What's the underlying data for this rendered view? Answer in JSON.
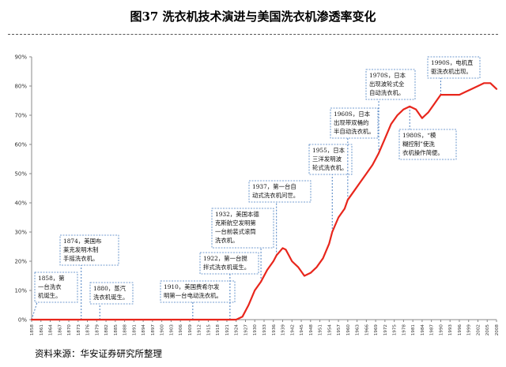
{
  "figure": {
    "title": "图37 洗衣机技术演进与美国洗衣机渗透率变化",
    "source": "资料来源：华安证券研究所整理"
  },
  "chart_data": {
    "type": "line",
    "title": "图37 洗衣机技术演进与美国洗衣机渗透率变化",
    "xlabel": "",
    "ylabel": "",
    "xlim": [
      1858,
      2008
    ],
    "ylim": [
      0,
      0.9
    ],
    "yticks": [
      "0%",
      "10%",
      "20%",
      "30%",
      "40%",
      "50%",
      "60%",
      "70%",
      "80%",
      "90%"
    ],
    "xticks": [
      1858,
      1861,
      1864,
      1867,
      1870,
      1873,
      1876,
      1879,
      1882,
      1885,
      1888,
      1891,
      1894,
      1897,
      1900,
      1903,
      1906,
      1909,
      1912,
      1915,
      1918,
      1921,
      1924,
      1927,
      1930,
      1933,
      1936,
      1939,
      1942,
      1945,
      1948,
      1951,
      1954,
      1957,
      1960,
      1963,
      1966,
      1969,
      1972,
      1975,
      1978,
      1981,
      1984,
      1987,
      1990,
      1993,
      1996,
      1999,
      2002,
      2005,
      2008
    ],
    "grid": false,
    "line_color": "#e8261c",
    "series": [
      {
        "x": [
          1858,
          1900,
          1922,
          1924,
          1926,
          1928,
          1930,
          1932,
          1934,
          1936,
          1937,
          1939,
          1940,
          1941,
          1942,
          1944,
          1946,
          1948,
          1950,
          1952,
          1954,
          1955,
          1957,
          1959,
          1960,
          1962,
          1964,
          1966,
          1968,
          1970,
          1972,
          1974,
          1976,
          1978,
          1980,
          1982,
          1984,
          1985,
          1986,
          1988,
          1990,
          1992,
          1994,
          1996,
          1998,
          2000,
          2002,
          2004,
          2006,
          2008
        ],
        "y": [
          0,
          0,
          0,
          0,
          0.01,
          0.05,
          0.1,
          0.13,
          0.17,
          0.2,
          0.22,
          0.245,
          0.24,
          0.22,
          0.2,
          0.18,
          0.15,
          0.16,
          0.18,
          0.21,
          0.26,
          0.3,
          0.35,
          0.38,
          0.41,
          0.44,
          0.47,
          0.5,
          0.53,
          0.57,
          0.62,
          0.67,
          0.7,
          0.72,
          0.73,
          0.72,
          0.69,
          0.7,
          0.71,
          0.74,
          0.77,
          0.77,
          0.77,
          0.77,
          0.78,
          0.79,
          0.8,
          0.81,
          0.81,
          0.79
        ]
      }
    ],
    "annotations": [
      {
        "year": 1858,
        "level": 0.0,
        "text": [
          "1858，第",
          "一台洗衣",
          "机诞生。"
        ]
      },
      {
        "year": 1874,
        "level": 0.0,
        "text": [
          "1874，美国布",
          "莱克发明木制",
          "手摇洗衣机。"
        ]
      },
      {
        "year": 1880,
        "level": 0.0,
        "text": [
          "1880，蒸汽",
          "洗衣机诞生。"
        ]
      },
      {
        "year": 1910,
        "level": 0.0,
        "text": [
          "1910，美国费希尔发",
          "明第一台电动洗衣机。"
        ]
      },
      {
        "year": 1922,
        "level": 0.0,
        "text": [
          "1922，第一台搅",
          "拌式洗衣机诞生。"
        ]
      },
      {
        "year": 1932,
        "level": 0.13,
        "text": [
          "1932，美国本德",
          "克斯航空发明第",
          "一台前装式滚筒",
          "洗衣机。"
        ]
      },
      {
        "year": 1937,
        "level": 0.22,
        "text": [
          "1937，第一台自",
          "动式洗衣机问世。"
        ]
      },
      {
        "year": 1955,
        "level": 0.3,
        "text": [
          "1955，日本",
          "三洋发明波",
          "轮式洗衣机。"
        ]
      },
      {
        "year": 1960,
        "level": 0.41,
        "text": [
          "1960S，日本",
          "出现带双桶的",
          "半自动洗衣机。"
        ]
      },
      {
        "year": 1970,
        "level": 0.57,
        "text": [
          "1970S，日本",
          "出现波轮式全",
          "自动洗衣机。"
        ]
      },
      {
        "year": 1980,
        "level": 0.73,
        "text": [
          "1980S，“模",
          "糊控制”使洗",
          "衣机操作简便。"
        ]
      },
      {
        "year": 1990,
        "level": 0.77,
        "text": [
          "1990S，电机直",
          "驱洗衣机出现。"
        ]
      }
    ]
  }
}
